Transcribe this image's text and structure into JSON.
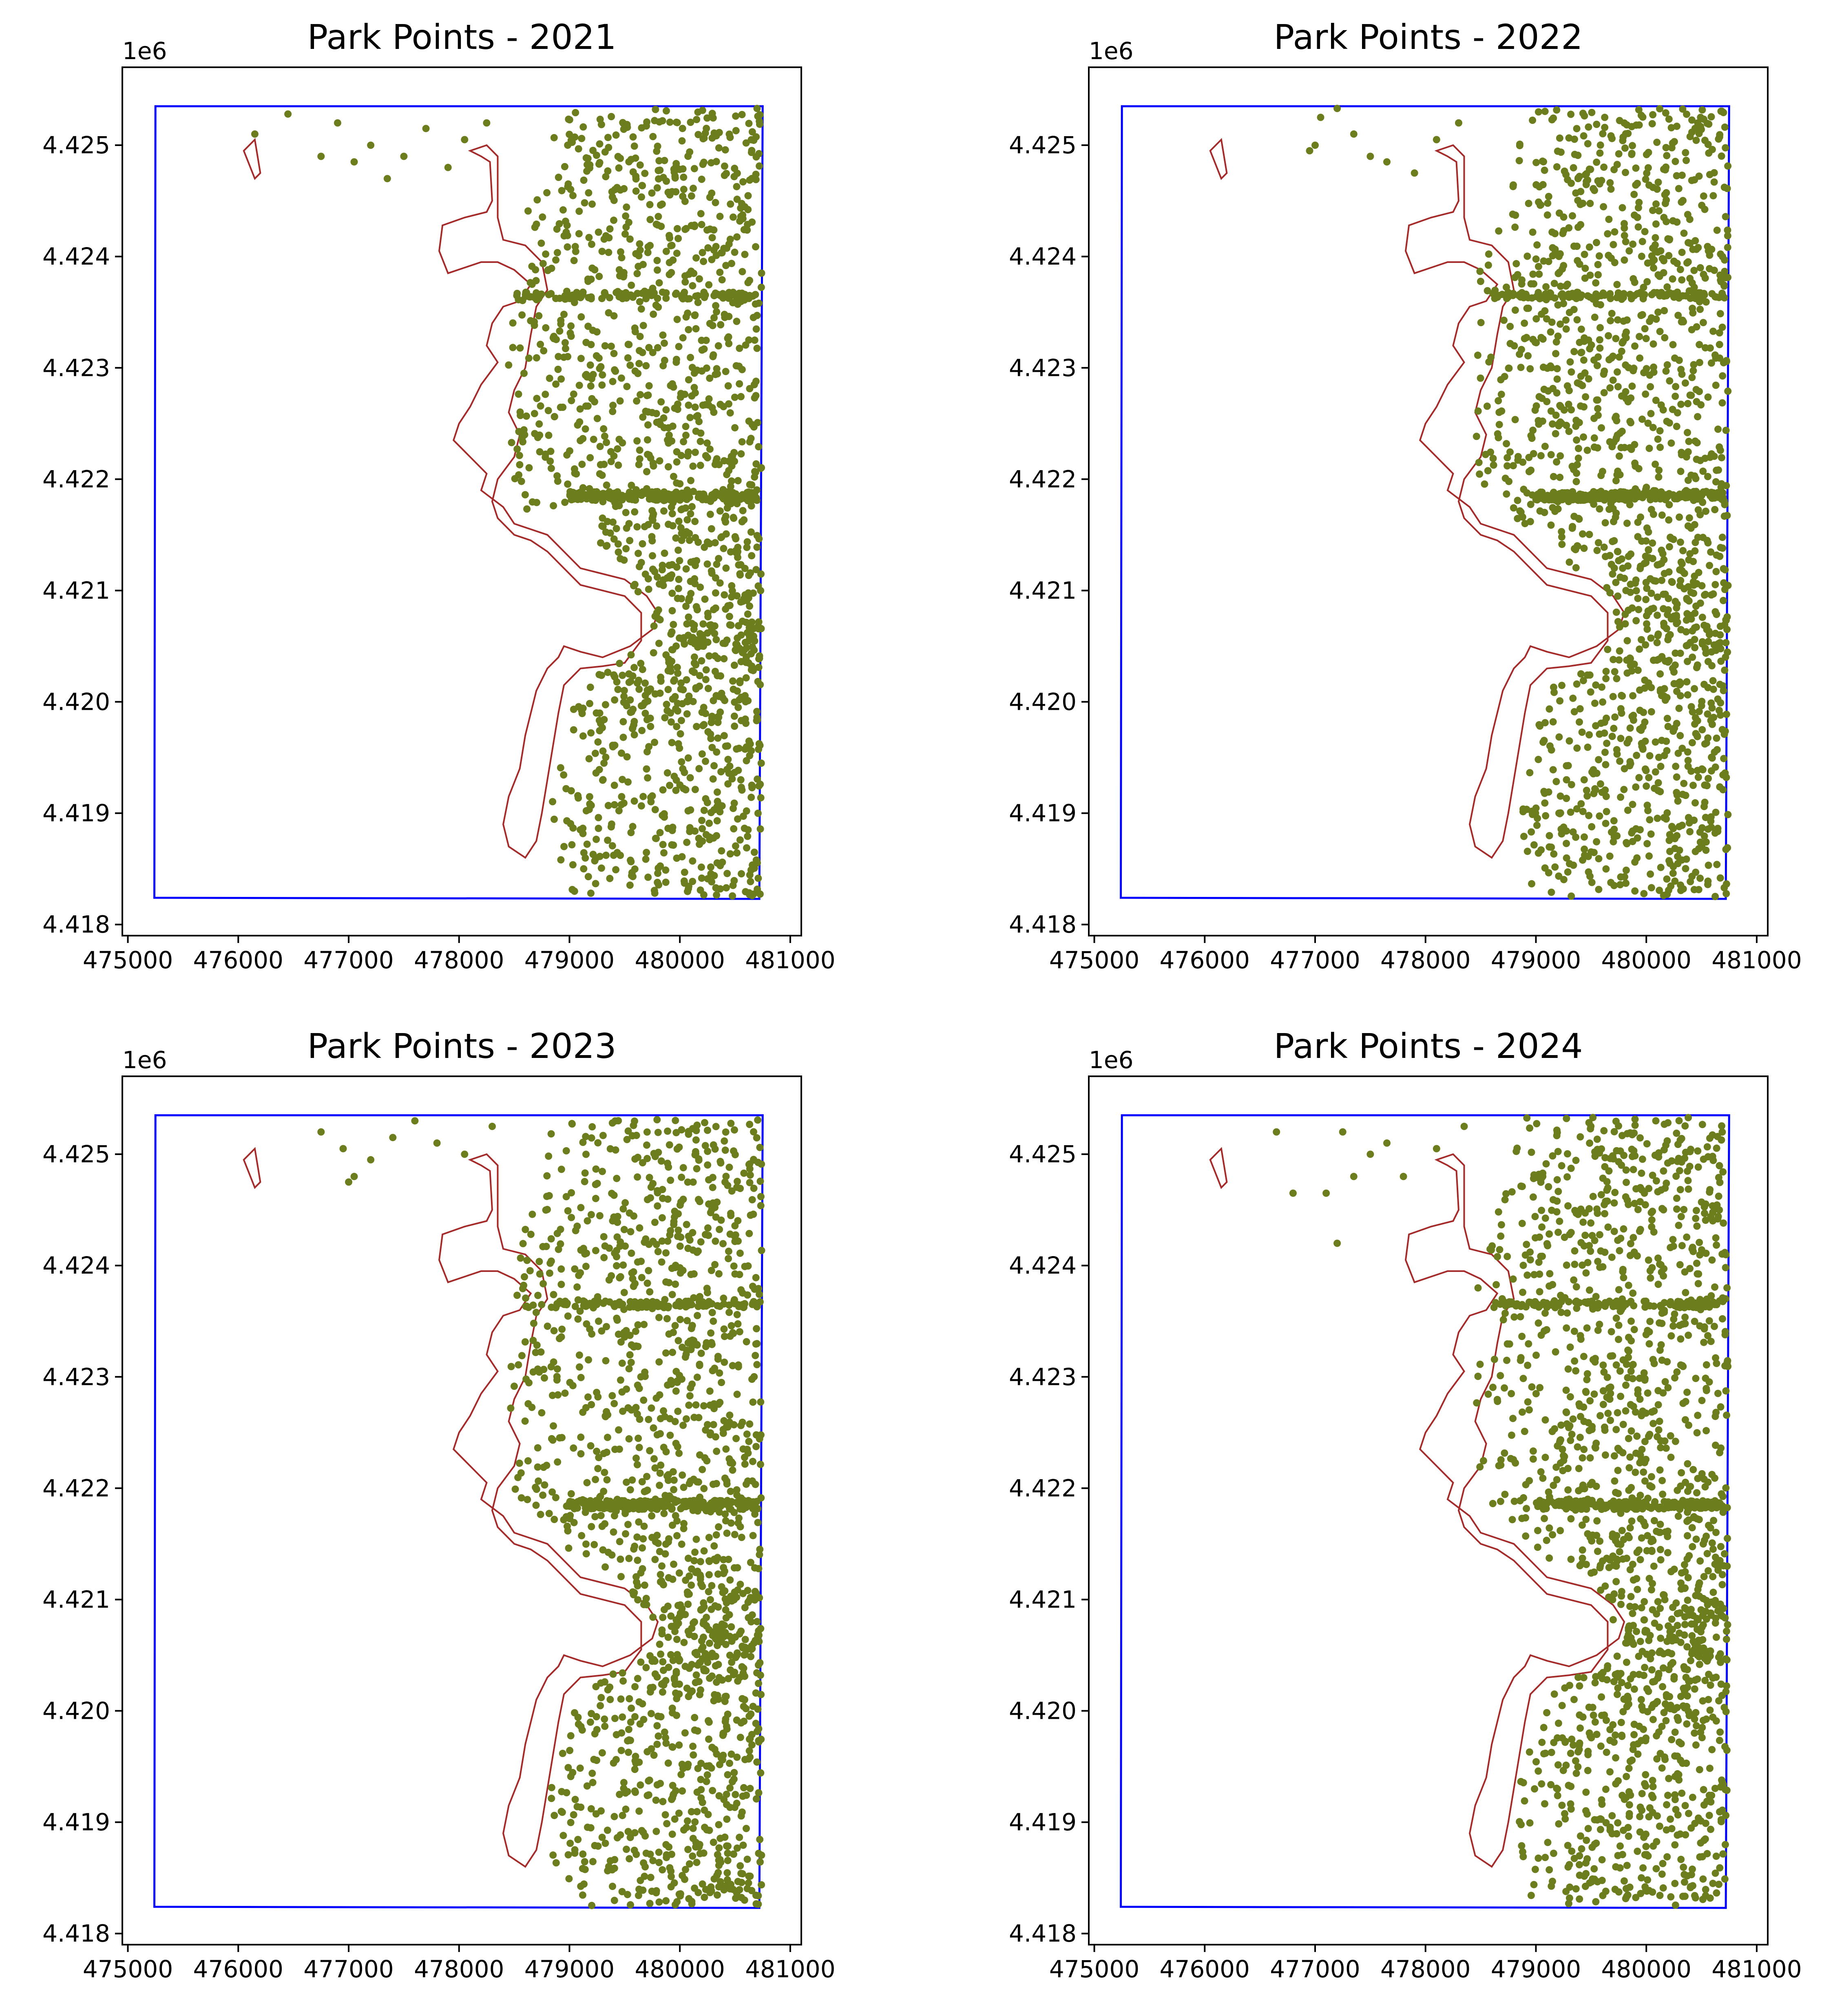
{
  "figure": {
    "colors": {
      "points": "#6b7d1c",
      "boundary": "#0000ff",
      "park_outline": "#a52a2a",
      "axes": "#000000",
      "background": "#ffffff"
    }
  },
  "chart_data": [
    {
      "type": "scatter",
      "title": "Park Points - 2021",
      "xlim": [
        474950,
        481100
      ],
      "ylim": [
        4417900,
        4425700
      ],
      "x_ticks": [
        "475000",
        "476000",
        "477000",
        "478000",
        "479000",
        "480000",
        "481000"
      ],
      "y_ticks": [
        "4.418",
        "4.419",
        "4.420",
        "4.421",
        "4.422",
        "4.423",
        "4.424",
        "4.425"
      ],
      "y_offset_label": "1e6",
      "grid": false,
      "legend": "none",
      "seed": 2021,
      "far_west_points": [
        [
          476150,
          4425100
        ],
        [
          476450,
          4425280
        ],
        [
          476750,
          4424900
        ],
        [
          476900,
          4425200
        ],
        [
          477050,
          4424850
        ],
        [
          477200,
          4425000
        ],
        [
          477350,
          4424700
        ],
        [
          477500,
          4424900
        ],
        [
          477700,
          4425150
        ],
        [
          477900,
          4424800
        ],
        [
          478050,
          4425050
        ],
        [
          478250,
          4425200
        ]
      ]
    },
    {
      "type": "scatter",
      "title": "Park Points - 2022",
      "xlim": [
        474950,
        481100
      ],
      "ylim": [
        4417900,
        4425700
      ],
      "x_ticks": [
        "475000",
        "476000",
        "477000",
        "478000",
        "479000",
        "480000",
        "481000"
      ],
      "y_ticks": [
        "4.418",
        "4.419",
        "4.420",
        "4.421",
        "4.422",
        "4.423",
        "4.424",
        "4.425"
      ],
      "y_offset_label": "1e6",
      "grid": false,
      "legend": "none",
      "seed": 2022,
      "far_west_points": [
        [
          477000,
          4425000
        ],
        [
          477050,
          4425250
        ],
        [
          477200,
          4425330
        ],
        [
          477500,
          4424900
        ],
        [
          477650,
          4424850
        ],
        [
          477900,
          4424750
        ],
        [
          478100,
          4425050
        ],
        [
          478300,
          4425200
        ],
        [
          476950,
          4424950
        ],
        [
          477350,
          4425100
        ]
      ]
    },
    {
      "type": "scatter",
      "title": "Park Points - 2023",
      "xlim": [
        474950,
        481100
      ],
      "ylim": [
        4417900,
        4425700
      ],
      "x_ticks": [
        "475000",
        "476000",
        "477000",
        "478000",
        "479000",
        "480000",
        "481000"
      ],
      "y_ticks": [
        "4.418",
        "4.419",
        "4.420",
        "4.421",
        "4.422",
        "4.423",
        "4.424",
        "4.425"
      ],
      "y_offset_label": "1e6",
      "grid": false,
      "legend": "none",
      "seed": 2023,
      "far_west_points": [
        [
          476750,
          4425200
        ],
        [
          476950,
          4425050
        ],
        [
          477050,
          4424800
        ],
        [
          477200,
          4424950
        ],
        [
          477400,
          4425150
        ],
        [
          477600,
          4425300
        ],
        [
          477800,
          4425100
        ],
        [
          478050,
          4425000
        ],
        [
          477000,
          4424750
        ],
        [
          478300,
          4425250
        ]
      ]
    },
    {
      "type": "scatter",
      "title": "Park Points - 2024",
      "xlim": [
        474950,
        481100
      ],
      "ylim": [
        4417900,
        4425700
      ],
      "x_ticks": [
        "475000",
        "476000",
        "477000",
        "478000",
        "479000",
        "480000",
        "481000"
      ],
      "y_ticks": [
        "4.418",
        "4.419",
        "4.420",
        "4.421",
        "4.422",
        "4.423",
        "4.424",
        "4.425"
      ],
      "y_offset_label": "1e6",
      "grid": false,
      "legend": "none",
      "seed": 2024,
      "far_west_points": [
        [
          476650,
          4425200
        ],
        [
          476800,
          4424650
        ],
        [
          477200,
          4424200
        ],
        [
          477250,
          4425200
        ],
        [
          477350,
          4424800
        ],
        [
          477500,
          4425000
        ],
        [
          477650,
          4425100
        ],
        [
          477800,
          4424800
        ],
        [
          478100,
          4425050
        ],
        [
          478350,
          4425250
        ],
        [
          477100,
          4424650
        ]
      ]
    }
  ],
  "map_layers": {
    "boundary": [
      [
        475250,
        4425350
      ],
      [
        480750,
        4425350
      ],
      [
        480720,
        4418230
      ],
      [
        475240,
        4418240
      ]
    ],
    "park_outline": [
      [
        478100,
        4424950
      ],
      [
        478200,
        4424900
      ],
      [
        478280,
        4424850
      ],
      [
        478300,
        4424500
      ],
      [
        478250,
        4424400
      ],
      [
        478050,
        4424350
      ],
      [
        477850,
        4424280
      ],
      [
        477820,
        4424050
      ],
      [
        477900,
        4423850
      ],
      [
        478050,
        4423900
      ],
      [
        478200,
        4423950
      ],
      [
        478350,
        4423950
      ],
      [
        478500,
        4423880
      ],
      [
        478650,
        4423750
      ],
      [
        478550,
        4423600
      ],
      [
        478400,
        4423550
      ],
      [
        478300,
        4423400
      ],
      [
        478250,
        4423200
      ],
      [
        478350,
        4423050
      ],
      [
        478200,
        4422850
      ],
      [
        478100,
        4422650
      ],
      [
        478000,
        4422500
      ],
      [
        477950,
        4422350
      ],
      [
        478100,
        4422200
      ],
      [
        478250,
        4422050
      ],
      [
        478200,
        4421900
      ],
      [
        478400,
        4421750
      ],
      [
        478500,
        4421600
      ],
      [
        478650,
        4421550
      ],
      [
        478800,
        4421500
      ],
      [
        478950,
        4421350
      ],
      [
        479100,
        4421200
      ],
      [
        479300,
        4421150
      ],
      [
        479500,
        4421100
      ],
      [
        479700,
        4420950
      ],
      [
        479800,
        4420800
      ],
      [
        479750,
        4420650
      ],
      [
        479550,
        4420500
      ],
      [
        479300,
        4420400
      ],
      [
        479100,
        4420450
      ],
      [
        478950,
        4420500
      ],
      [
        478900,
        4420400
      ],
      [
        478800,
        4420300
      ],
      [
        478700,
        4420100
      ],
      [
        478650,
        4419900
      ],
      [
        478600,
        4419700
      ],
      [
        478550,
        4419400
      ],
      [
        478450,
        4419150
      ],
      [
        478400,
        4418900
      ],
      [
        478450,
        4418700
      ],
      [
        478600,
        4418600
      ],
      [
        478700,
        4418750
      ],
      [
        478750,
        4419000
      ],
      [
        478800,
        4419300
      ],
      [
        478850,
        4419600
      ],
      [
        478900,
        4419900
      ],
      [
        478950,
        4420150
      ],
      [
        479100,
        4420300
      ],
      [
        479300,
        4420320
      ],
      [
        479500,
        4420350
      ],
      [
        479650,
        4420550
      ],
      [
        479650,
        4420800
      ],
      [
        479500,
        4420950
      ],
      [
        479300,
        4421000
      ],
      [
        479100,
        4421050
      ],
      [
        478950,
        4421200
      ],
      [
        478800,
        4421350
      ],
      [
        478650,
        4421450
      ],
      [
        478500,
        4421500
      ],
      [
        478350,
        4421650
      ],
      [
        478300,
        4421800
      ],
      [
        478350,
        4422000
      ],
      [
        478500,
        4422200
      ],
      [
        478550,
        4422400
      ],
      [
        478450,
        4422600
      ],
      [
        478500,
        4422800
      ],
      [
        478600,
        4423000
      ],
      [
        478650,
        4423300
      ],
      [
        478700,
        4423550
      ],
      [
        478800,
        4423700
      ],
      [
        478750,
        4423950
      ],
      [
        478600,
        4424100
      ],
      [
        478400,
        4424150
      ],
      [
        478350,
        4424350
      ],
      [
        478350,
        4424700
      ],
      [
        478350,
        4424900
      ],
      [
        478250,
        4425000
      ],
      [
        478100,
        4424950
      ]
    ],
    "islet": [
      [
        476050,
        4424950
      ],
      [
        476150,
        4425050
      ],
      [
        476200,
        4424750
      ],
      [
        476150,
        4424700
      ],
      [
        476050,
        4424950
      ]
    ]
  }
}
